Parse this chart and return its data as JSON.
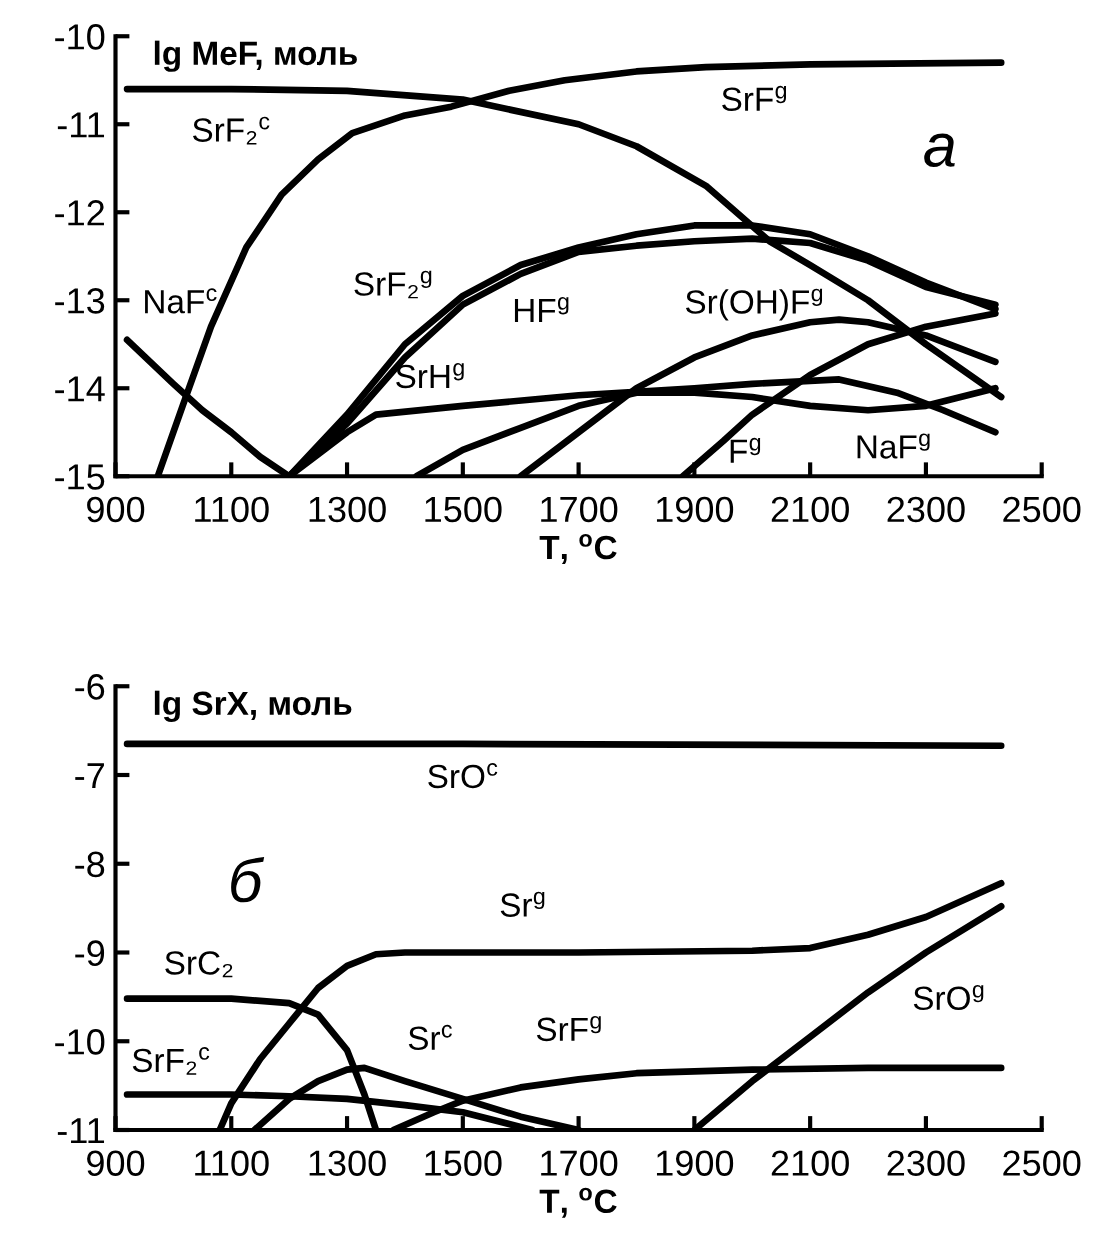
{
  "chart_data": [
    {
      "type": "line",
      "title": "а",
      "ylabel": "lg MeF, моль",
      "xlabel": "T, $^{o}$C",
      "xlim": [
        900,
        2500
      ],
      "ylim": [
        -15,
        -10
      ],
      "xticks": [
        900,
        1100,
        1300,
        1500,
        1700,
        1900,
        2100,
        2300,
        2500
      ],
      "yticks": [
        -15,
        -14,
        -13,
        -12,
        -11,
        -10
      ],
      "grid": false,
      "legend": false,
      "marker": "none",
      "line_style": "solid",
      "series": [
        {
          "color": "#000000",
          "x": [
            920,
            1100,
            1300,
            1500,
            1700,
            1800,
            1920,
            2030,
            2100,
            2200,
            2300,
            2430
          ],
          "values": [
            -10.6,
            -10.6,
            -10.62,
            -10.72,
            -11.0,
            -11.25,
            -11.7,
            -12.33,
            -12.6,
            -13.0,
            -13.5,
            -14.1
          ]
        },
        {
          "color": "#000000",
          "x": [
            973,
            1016,
            1065,
            1126,
            1187,
            1250,
            1309,
            1400,
            1480,
            1580,
            1676,
            1800,
            1920,
            2100,
            2430
          ],
          "values": [
            -15,
            -14.2,
            -13.3,
            -12.4,
            -11.8,
            -11.4,
            -11.1,
            -10.9,
            -10.8,
            -10.62,
            -10.5,
            -10.4,
            -10.35,
            -10.32,
            -10.3
          ]
        },
        {
          "color": "#000000",
          "x": [
            920,
            1000,
            1050,
            1100,
            1150,
            1200
          ],
          "values": [
            -13.45,
            -13.95,
            -14.25,
            -14.5,
            -14.78,
            -15
          ]
        },
        {
          "color": "#000000",
          "x": [
            1200,
            1300,
            1400,
            1500,
            1600,
            1700,
            1800,
            1900,
            2000,
            2100,
            2200,
            2300,
            2420
          ],
          "values": [
            -15,
            -14.3,
            -13.5,
            -12.95,
            -12.6,
            -12.4,
            -12.25,
            -12.15,
            -12.15,
            -12.25,
            -12.5,
            -12.8,
            -13.1
          ]
        },
        {
          "color": "#000000",
          "x": [
            1200,
            1300,
            1400,
            1500,
            1600,
            1700,
            1800,
            1900,
            2000,
            2100,
            2200,
            2300,
            2420
          ],
          "values": [
            -15,
            -14.4,
            -13.65,
            -13.05,
            -12.7,
            -12.45,
            -12.38,
            -12.33,
            -12.3,
            -12.35,
            -12.55,
            -12.85,
            -13.05
          ]
        },
        {
          "color": "#000000",
          "x": [
            1200,
            1250,
            1300,
            1350,
            1500,
            1700,
            1900,
            2000,
            2150,
            2250,
            2330,
            2420
          ],
          "values": [
            -15,
            -14.75,
            -14.5,
            -14.3,
            -14.2,
            -14.08,
            -14.0,
            -13.95,
            -13.9,
            -14.05,
            -14.25,
            -14.5
          ]
        },
        {
          "color": "#000000",
          "x": [
            1420,
            1500,
            1600,
            1700,
            1800,
            1900,
            2000,
            2100,
            2200,
            2300,
            2420
          ],
          "values": [
            -15,
            -14.7,
            -14.45,
            -14.2,
            -14.05,
            -14.05,
            -14.1,
            -14.2,
            -14.25,
            -14.2,
            -14.0
          ]
        },
        {
          "color": "#000000",
          "x": [
            1600,
            1700,
            1800,
            1900,
            2000,
            2100,
            2150,
            2200,
            2300,
            2420
          ],
          "values": [
            -15,
            -14.5,
            -14.0,
            -13.65,
            -13.4,
            -13.25,
            -13.22,
            -13.25,
            -13.4,
            -13.7
          ]
        },
        {
          "color": "#000000",
          "x": [
            1880,
            1950,
            2000,
            2100,
            2200,
            2300,
            2420
          ],
          "values": [
            -15,
            -14.6,
            -14.3,
            -13.85,
            -13.5,
            -13.3,
            -13.15
          ]
        }
      ],
      "annotations": [
        "SrF₂$^{c}$",
        "SrF$^{g}$",
        "NaF$^{c}$",
        "SrF₂$^{g}$",
        "HF$^{g}$",
        "Sr(OH)F$^{g}$",
        "SrH$^{g}$",
        "F$^{g}$",
        "NaF$^{g}$"
      ]
    },
    {
      "type": "line",
      "title": "б",
      "ylabel": "lg SrX, моль",
      "xlabel": "T, $^{o}$C",
      "xlim": [
        900,
        2500
      ],
      "ylim": [
        -11,
        -6
      ],
      "xticks": [
        900,
        1100,
        1300,
        1500,
        1700,
        1900,
        2100,
        2300,
        2500
      ],
      "yticks": [
        -11,
        -10,
        -9,
        -8,
        -7,
        -6
      ],
      "grid": false,
      "legend": false,
      "marker": "none",
      "line_style": "solid",
      "series": [
        {
          "color": "#000000",
          "x": [
            920,
            1500,
            2430
          ],
          "values": [
            -6.65,
            -6.65,
            -6.67
          ]
        },
        {
          "color": "#000000",
          "x": [
            1080,
            1100,
            1150,
            1200,
            1250,
            1300,
            1350,
            1400,
            1700,
            2000,
            2100,
            2200,
            2300,
            2430
          ],
          "values": [
            -11,
            -10.7,
            -10.2,
            -9.8,
            -9.4,
            -9.15,
            -9.02,
            -9.0,
            -9.0,
            -8.98,
            -8.95,
            -8.8,
            -8.6,
            -8.22
          ]
        },
        {
          "color": "#000000",
          "x": [
            920,
            1100,
            1200,
            1250,
            1300,
            1330,
            1350
          ],
          "values": [
            -9.52,
            -9.52,
            -9.57,
            -9.7,
            -10.1,
            -10.6,
            -11
          ]
        },
        {
          "color": "#000000",
          "x": [
            1140,
            1200,
            1250,
            1300,
            1330,
            1400,
            1500,
            1600,
            1700
          ],
          "values": [
            -11,
            -10.65,
            -10.45,
            -10.32,
            -10.3,
            -10.45,
            -10.65,
            -10.85,
            -11
          ]
        },
        {
          "color": "#000000",
          "x": [
            920,
            1100,
            1200,
            1300,
            1400,
            1500,
            1620
          ],
          "values": [
            -10.6,
            -10.6,
            -10.62,
            -10.65,
            -10.72,
            -10.8,
            -11
          ]
        },
        {
          "color": "#000000",
          "x": [
            1380,
            1450,
            1500,
            1600,
            1700,
            1800,
            2000,
            2200,
            2430
          ],
          "values": [
            -11,
            -10.8,
            -10.67,
            -10.52,
            -10.43,
            -10.36,
            -10.32,
            -10.3,
            -10.3
          ]
        },
        {
          "color": "#000000",
          "x": [
            1900,
            2000,
            2100,
            2200,
            2300,
            2430
          ],
          "values": [
            -11,
            -10.45,
            -9.95,
            -9.45,
            -9.0,
            -8.48
          ]
        }
      ],
      "annotations": [
        "SrO$^{c}$",
        "Sr$^{g}$",
        "SrC₂",
        "SrF₂$^{c}$",
        "Sr$^{c}$",
        "SrF$^{g}$",
        "SrO$^{g}$"
      ]
    }
  ]
}
